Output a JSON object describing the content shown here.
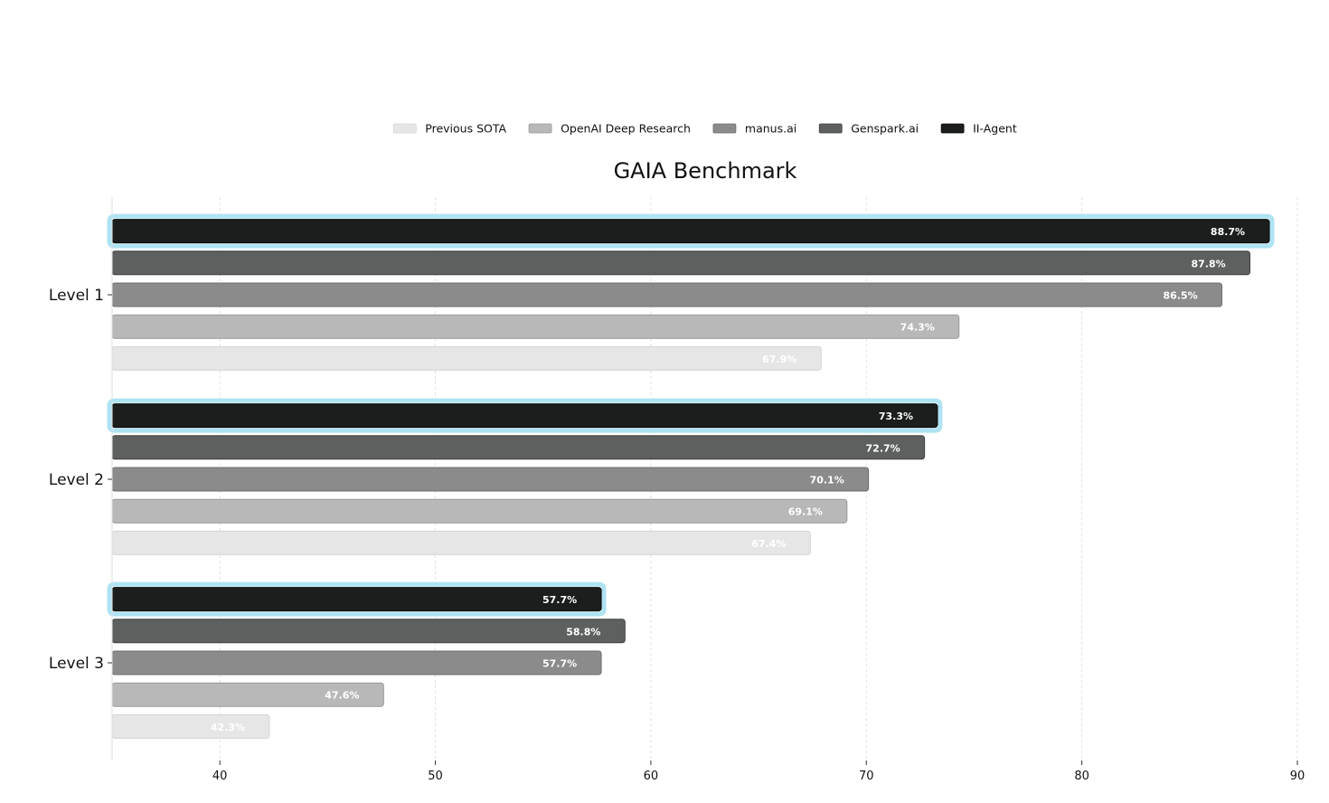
{
  "chart_data": {
    "type": "bar",
    "orientation": "horizontal",
    "title": "GAIA Benchmark",
    "xlabel": "",
    "ylabel": "",
    "categories": [
      "Level 1",
      "Level 2",
      "Level 3"
    ],
    "xlim": [
      35,
      90
    ],
    "x_ticks": [
      40,
      50,
      60,
      70,
      80,
      90
    ],
    "grid": "vertical, dashed",
    "legend_position": "top-center",
    "value_label_format": "{v}%",
    "highlighted_series": "II-Agent",
    "highlight_color": "#aee3f2",
    "series": [
      {
        "name": "Previous SOTA",
        "color": "#e6e6e6",
        "edge": "#d4d4d4",
        "values": [
          67.9,
          67.4,
          42.3
        ]
      },
      {
        "name": "OpenAI Deep Research",
        "color": "#b7b8b7",
        "edge": "#9a9a9a",
        "values": [
          74.3,
          69.1,
          47.6
        ]
      },
      {
        "name": "manus.ai",
        "color": "#8a8b8a",
        "edge": "#6e6e6e",
        "values": [
          86.5,
          70.1,
          57.7
        ]
      },
      {
        "name": "Genspark.ai",
        "color": "#5d605f",
        "edge": "#3f4241",
        "values": [
          87.8,
          72.7,
          58.8
        ]
      },
      {
        "name": "II-Agent",
        "color": "#1b1e1d",
        "edge": "#0a0c0b",
        "values": [
          88.7,
          73.3,
          57.7
        ]
      }
    ]
  }
}
